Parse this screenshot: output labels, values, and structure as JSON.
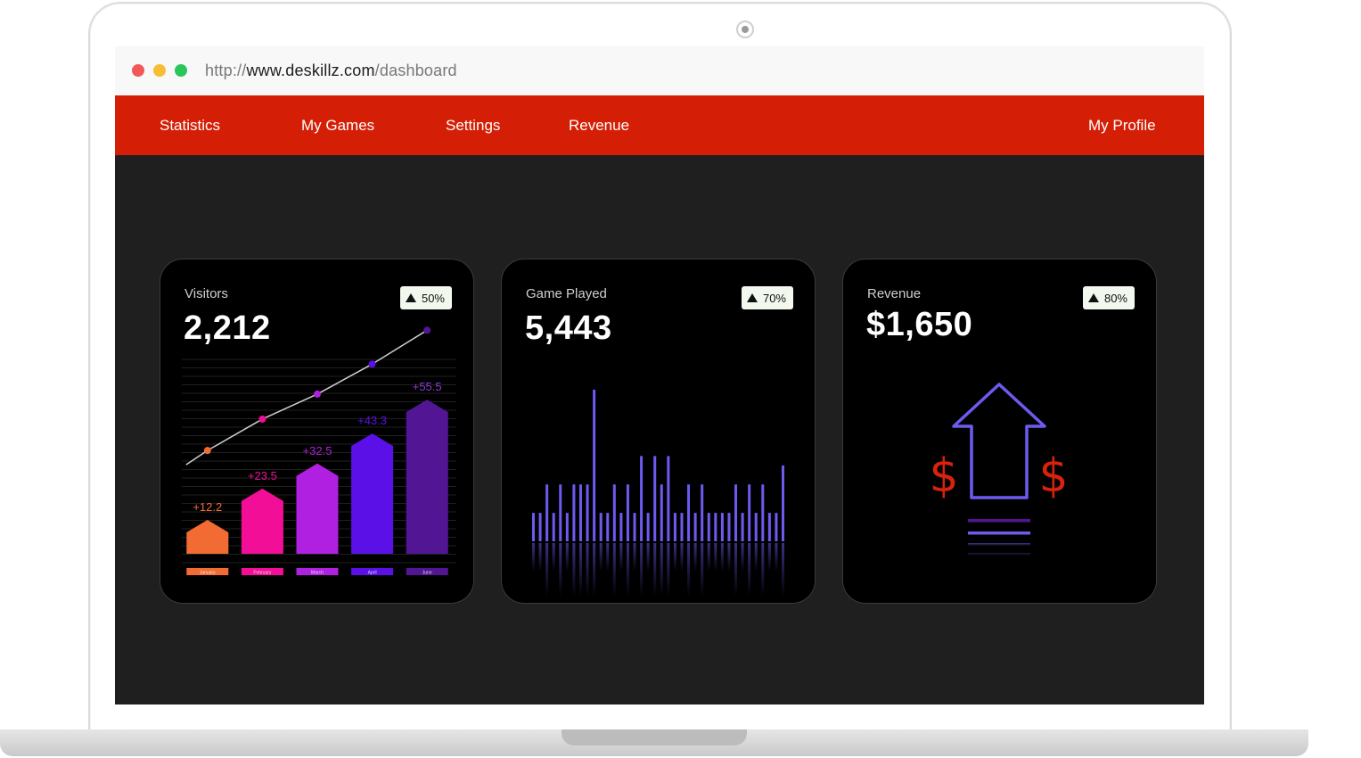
{
  "browser": {
    "url_protocol": "http://",
    "url_domain": "www.deskillz.com",
    "url_path": "/dashboard"
  },
  "nav": {
    "items": [
      "Statistics",
      "My Games",
      "Settings",
      "Revenue"
    ],
    "profile": "My Profile"
  },
  "colors": {
    "nav_bg": "#d41f06",
    "screen_bg": "#1f1f1f",
    "card_bg": "#000000",
    "accent_purple": "#6d5bf0",
    "dollar_red": "#d9220c"
  },
  "cards": [
    {
      "title": "Visitors",
      "value": "2,212",
      "badge": "50%",
      "badge_icon": "up-triangle-icon"
    },
    {
      "title": "Game Played",
      "value": "5,443",
      "badge": "70%",
      "badge_icon": "up-triangle-icon"
    },
    {
      "title": "Revenue",
      "value": "$1,650",
      "badge": "80%",
      "badge_icon": "up-triangle-icon",
      "illustration_icon": "revenue-up-arrow-icon"
    }
  ],
  "chart_data": [
    {
      "type": "bar",
      "title": "Visitors",
      "categories": [
        "January",
        "February",
        "March",
        "April",
        "June"
      ],
      "values": [
        12.2,
        23.5,
        32.5,
        43.3,
        55.5
      ],
      "labels": [
        "+12.2",
        "+23.5",
        "+32.5",
        "+43.3",
        "+55.5"
      ],
      "colors": [
        "#f26b32",
        "#f20e96",
        "#b020e0",
        "#5a10e6",
        "#521694"
      ],
      "trend_line": true,
      "ylim": [
        0,
        70
      ]
    },
    {
      "type": "bar",
      "title": "Game Played",
      "values": [
        3,
        3,
        6,
        3,
        6,
        3,
        6,
        6,
        6,
        16,
        3,
        3,
        6,
        3,
        6,
        3,
        9,
        3,
        9,
        6,
        9,
        3,
        3,
        6,
        3,
        6,
        3,
        3,
        3,
        3,
        6,
        3,
        6,
        3,
        6,
        3,
        3,
        8
      ],
      "ylim": [
        0,
        16
      ],
      "color": "#6d5bf0"
    }
  ]
}
